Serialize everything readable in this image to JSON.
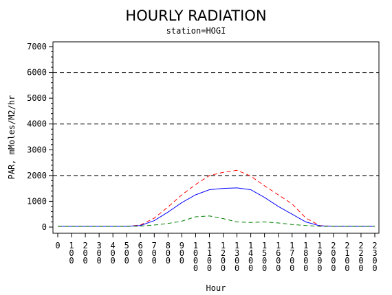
{
  "chart_data": {
    "type": "line",
    "title": "HOURLY RADIATION",
    "subtitle": "station=HOGI",
    "xlabel": "Hour",
    "ylabel": "PAR, mMoles/M2/hr",
    "x": [
      0,
      100,
      200,
      300,
      400,
      500,
      600,
      700,
      800,
      900,
      1000,
      1100,
      1200,
      1300,
      1400,
      1500,
      1600,
      1700,
      1800,
      1900,
      2000,
      2100,
      2200,
      2300
    ],
    "x_tick_labels": [
      "0",
      "100",
      "200",
      "300",
      "400",
      "500",
      "600",
      "700",
      "800",
      "900",
      "1000",
      "1100",
      "1200",
      "1300",
      "1400",
      "1500",
      "1600",
      "1700",
      "1800",
      "1900",
      "2000",
      "2100",
      "2200",
      "2300"
    ],
    "ylim": [
      0,
      7000
    ],
    "y_ticks": [
      0,
      1000,
      2000,
      3000,
      4000,
      5000,
      6000,
      7000
    ],
    "y_tick_labels": [
      "0",
      "1000",
      "2000",
      "3000",
      "4000",
      "5000",
      "6000",
      "7000"
    ],
    "reference_lines": [
      2000,
      4000,
      6000
    ],
    "grid": false,
    "legend": "none",
    "series": [
      {
        "color": "#ff0000",
        "dash": "dashed",
        "values": [
          30,
          30,
          30,
          30,
          30,
          30,
          80,
          350,
          780,
          1250,
          1650,
          2000,
          2120,
          2200,
          1980,
          1600,
          1250,
          900,
          350,
          60,
          30,
          30,
          30,
          30
        ]
      },
      {
        "color": "#0000ff",
        "dash": "solid",
        "values": [
          30,
          30,
          30,
          30,
          30,
          30,
          60,
          250,
          580,
          950,
          1250,
          1450,
          1500,
          1520,
          1450,
          1150,
          800,
          500,
          200,
          50,
          30,
          30,
          30,
          30
        ]
      },
      {
        "color": "#008000",
        "dash": "dashed",
        "values": [
          30,
          30,
          30,
          30,
          30,
          30,
          40,
          80,
          140,
          230,
          400,
          430,
          330,
          200,
          180,
          200,
          160,
          100,
          60,
          30,
          30,
          30,
          30,
          30
        ]
      }
    ]
  }
}
